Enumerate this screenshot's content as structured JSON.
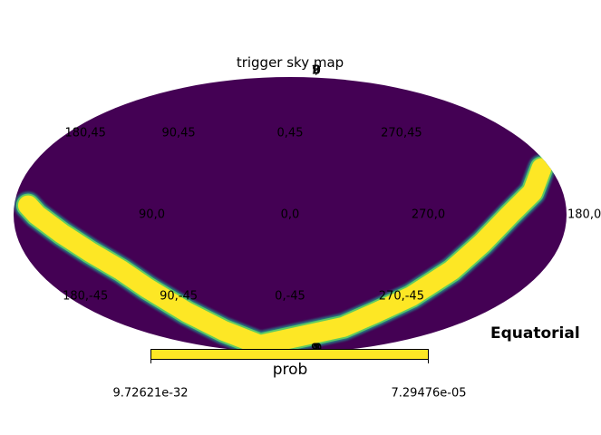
{
  "chart_data": {
    "type": "heatmap",
    "projection": "mollweide",
    "title": "trigger sky map",
    "coord_system_label": "Equatorial",
    "colormap": "viridis",
    "background_color": "#440154",
    "high_color": "#fde725",
    "grid_labels": [
      {
        "text": "90,45",
        "lon": 90,
        "lat": 45
      },
      {
        "text": "0,45",
        "lon": 0,
        "lat": 45
      },
      {
        "text": "270,45",
        "lon": 270,
        "lat": 45
      },
      {
        "text": "180,45",
        "lon": 180,
        "lat": 45
      },
      {
        "text": "90,0",
        "lon": 90,
        "lat": 0
      },
      {
        "text": "0,0",
        "lon": 0,
        "lat": 0
      },
      {
        "text": "270,0",
        "lon": 270,
        "lat": 0
      },
      {
        "text": "180,0",
        "lon": 180,
        "lat": 0
      },
      {
        "text": "90,-45",
        "lon": 90,
        "lat": -45
      },
      {
        "text": "0,-45",
        "lon": 0,
        "lat": -45
      },
      {
        "text": "270,-45",
        "lon": 270,
        "lat": -45
      },
      {
        "text": "180,-45",
        "lon": 180,
        "lat": -45
      }
    ],
    "pole_labels": {
      "north": "180,90",
      "south": "180,-90"
    },
    "colorbar": {
      "label": "prob",
      "min_label": "9.72621e-32",
      "max_label": "7.29476e-05",
      "min": 9.72621e-32,
      "max": 7.29476e-05
    },
    "probability_band": [
      {
        "lon": 171,
        "lat": 5
      },
      {
        "lon": 165,
        "lat": 0
      },
      {
        "lon": 150,
        "lat": -10
      },
      {
        "lon": 135,
        "lat": -20
      },
      {
        "lon": 120,
        "lat": -30
      },
      {
        "lon": 110,
        "lat": -40
      },
      {
        "lon": 95,
        "lat": -55
      },
      {
        "lon": 80,
        "lat": -68
      },
      {
        "lon": 60,
        "lat": -80
      },
      {
        "lon": 300,
        "lat": -65
      },
      {
        "lon": 280,
        "lat": -55
      },
      {
        "lon": 262,
        "lat": -45
      },
      {
        "lon": 245,
        "lat": -30
      },
      {
        "lon": 232,
        "lat": -15
      },
      {
        "lon": 217,
        "lat": 0
      },
      {
        "lon": 200,
        "lat": 12
      },
      {
        "lon": 186,
        "lat": 25
      }
    ]
  }
}
